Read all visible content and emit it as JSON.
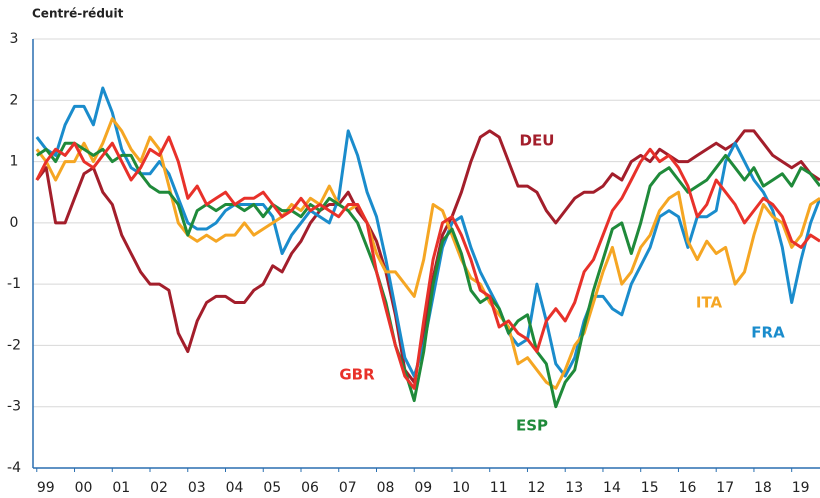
{
  "chart_data": {
    "type": "line",
    "title": "Centré-réduit",
    "x": [
      1999,
      1999.25,
      1999.5,
      1999.75,
      2000,
      2000.25,
      2000.5,
      2000.75,
      2001,
      2001.25,
      2001.5,
      2001.75,
      2002,
      2002.25,
      2002.5,
      2002.75,
      2003,
      2003.25,
      2003.5,
      2003.75,
      2004,
      2004.25,
      2004.5,
      2004.75,
      2005,
      2005.25,
      2005.5,
      2005.75,
      2006,
      2006.25,
      2006.5,
      2006.75,
      2007,
      2007.25,
      2007.5,
      2007.75,
      2008,
      2008.25,
      2008.5,
      2008.75,
      2009,
      2009.25,
      2009.5,
      2009.75,
      2010,
      2010.25,
      2010.5,
      2010.75,
      2011,
      2011.25,
      2011.5,
      2011.75,
      2012,
      2012.25,
      2012.5,
      2012.75,
      2013,
      2013.25,
      2013.5,
      2013.75,
      2014,
      2014.25,
      2014.5,
      2014.75,
      2015,
      2015.25,
      2015.5,
      2015.75,
      2016,
      2016.25,
      2016.5,
      2016.75,
      2017,
      2017.25,
      2017.5,
      2017.75,
      2018,
      2018.25,
      2018.5,
      2018.75,
      2019,
      2019.25,
      2019.5,
      2019.75
    ],
    "series": [
      {
        "name": "DEU",
        "color": "#a31e2b",
        "values": [
          0.7,
          0.9,
          0.0,
          0.0,
          0.4,
          0.8,
          0.9,
          0.5,
          0.3,
          -0.2,
          -0.5,
          -0.8,
          -1.0,
          -1.0,
          -1.1,
          -1.8,
          -2.1,
          -1.6,
          -1.3,
          -1.2,
          -1.2,
          -1.3,
          -1.3,
          -1.1,
          -1.0,
          -0.7,
          -0.8,
          -0.5,
          -0.3,
          0.0,
          0.2,
          0.3,
          0.3,
          0.5,
          0.2,
          0.0,
          -0.3,
          -0.8,
          -1.5,
          -2.4,
          -2.6,
          -1.8,
          -0.9,
          -0.2,
          0.1,
          0.5,
          1.0,
          1.4,
          1.5,
          1.4,
          1.0,
          0.6,
          0.6,
          0.5,
          0.2,
          0.0,
          0.2,
          0.4,
          0.5,
          0.5,
          0.6,
          0.8,
          0.7,
          1.0,
          1.1,
          1.0,
          1.2,
          1.1,
          1.0,
          1.0,
          1.1,
          1.2,
          1.3,
          1.2,
          1.3,
          1.5,
          1.5,
          1.3,
          1.1,
          1.0,
          0.9,
          1.0,
          0.8,
          0.7
        ]
      },
      {
        "name": "FRA",
        "color": "#1a8ccc",
        "values": [
          1.4,
          1.2,
          1.1,
          1.6,
          1.9,
          1.9,
          1.6,
          2.2,
          1.8,
          1.2,
          0.9,
          0.8,
          0.8,
          1.0,
          0.8,
          0.4,
          0.0,
          -0.1,
          -0.1,
          0.0,
          0.2,
          0.3,
          0.3,
          0.3,
          0.3,
          0.1,
          -0.5,
          -0.2,
          0.0,
          0.2,
          0.1,
          0.0,
          0.4,
          1.5,
          1.1,
          0.5,
          0.1,
          -0.6,
          -1.4,
          -2.2,
          -2.5,
          -2.0,
          -1.2,
          -0.4,
          0.0,
          0.1,
          -0.4,
          -0.8,
          -1.1,
          -1.4,
          -1.8,
          -2.0,
          -1.9,
          -1.0,
          -1.6,
          -2.3,
          -2.5,
          -2.2,
          -1.6,
          -1.2,
          -1.2,
          -1.4,
          -1.5,
          -1.0,
          -0.7,
          -0.4,
          0.1,
          0.2,
          0.1,
          -0.4,
          0.1,
          0.1,
          0.2,
          1.0,
          1.3,
          1.0,
          0.7,
          0.5,
          0.2,
          -0.4,
          -1.3,
          -0.6,
          0.0,
          0.4
        ]
      },
      {
        "name": "ITA",
        "color": "#f5a623",
        "values": [
          1.2,
          1.0,
          0.7,
          1.0,
          1.0,
          1.3,
          1.0,
          1.3,
          1.7,
          1.5,
          1.2,
          1.0,
          1.4,
          1.2,
          0.6,
          0.0,
          -0.2,
          -0.3,
          -0.2,
          -0.3,
          -0.2,
          -0.2,
          0.0,
          -0.2,
          -0.1,
          0.0,
          0.1,
          0.3,
          0.2,
          0.4,
          0.3,
          0.6,
          0.3,
          0.2,
          0.3,
          0.0,
          -0.5,
          -0.8,
          -0.8,
          -1.0,
          -1.2,
          -0.6,
          0.3,
          0.2,
          -0.2,
          -0.6,
          -0.9,
          -1.0,
          -1.3,
          -1.5,
          -1.7,
          -2.3,
          -2.2,
          -2.4,
          -2.6,
          -2.7,
          -2.4,
          -2.0,
          -1.8,
          -1.3,
          -0.8,
          -0.4,
          -1.0,
          -0.8,
          -0.4,
          -0.2,
          0.2,
          0.4,
          0.5,
          -0.3,
          -0.6,
          -0.3,
          -0.5,
          -0.4,
          -1.0,
          -0.8,
          -0.2,
          0.3,
          0.1,
          0.0,
          -0.4,
          -0.2,
          0.3,
          0.4
        ]
      },
      {
        "name": "ESP",
        "color": "#1f8a3a",
        "values": [
          1.1,
          1.2,
          1.0,
          1.3,
          1.3,
          1.2,
          1.1,
          1.2,
          1.0,
          1.1,
          1.1,
          0.8,
          0.6,
          0.5,
          0.5,
          0.3,
          -0.2,
          0.2,
          0.3,
          0.2,
          0.3,
          0.3,
          0.2,
          0.3,
          0.1,
          0.3,
          0.2,
          0.2,
          0.1,
          0.3,
          0.2,
          0.4,
          0.3,
          0.2,
          0.0,
          -0.4,
          -0.8,
          -1.3,
          -2.0,
          -2.4,
          -2.9,
          -2.1,
          -1.0,
          -0.3,
          -0.1,
          -0.5,
          -1.1,
          -1.3,
          -1.2,
          -1.4,
          -1.8,
          -1.6,
          -1.5,
          -2.1,
          -2.3,
          -3.0,
          -2.6,
          -2.4,
          -1.7,
          -1.1,
          -0.6,
          -0.1,
          0.0,
          -0.5,
          0.0,
          0.6,
          0.8,
          0.9,
          0.7,
          0.5,
          0.6,
          0.7,
          0.9,
          1.1,
          0.9,
          0.7,
          0.9,
          0.6,
          0.7,
          0.8,
          0.6,
          0.9,
          0.8,
          0.6
        ]
      },
      {
        "name": "GBR",
        "color": "#e8312a",
        "values": [
          0.7,
          1.0,
          1.2,
          1.1,
          1.3,
          1.0,
          0.9,
          1.1,
          1.3,
          1.0,
          0.7,
          0.9,
          1.2,
          1.1,
          1.4,
          1.0,
          0.4,
          0.6,
          0.3,
          0.4,
          0.5,
          0.3,
          0.4,
          0.4,
          0.5,
          0.3,
          0.1,
          0.2,
          0.4,
          0.2,
          0.3,
          0.2,
          0.1,
          0.3,
          0.3,
          0.0,
          -0.8,
          -1.4,
          -2.0,
          -2.5,
          -2.7,
          -1.6,
          -0.6,
          0.0,
          0.1,
          -0.2,
          -0.6,
          -1.1,
          -1.2,
          -1.7,
          -1.6,
          -1.8,
          -1.9,
          -2.1,
          -1.6,
          -1.4,
          -1.6,
          -1.3,
          -0.8,
          -0.6,
          -0.2,
          0.2,
          0.4,
          0.7,
          1.0,
          1.2,
          1.0,
          1.1,
          0.9,
          0.6,
          0.1,
          0.3,
          0.7,
          0.5,
          0.3,
          0.0,
          0.2,
          0.4,
          0.3,
          0.1,
          -0.3,
          -0.4,
          -0.2,
          -0.3
        ]
      }
    ],
    "xlim": [
      1998.9,
      2019.75
    ],
    "xticks": [
      {
        "value": 1999,
        "label": "99"
      },
      {
        "value": 2000,
        "label": "00"
      },
      {
        "value": 2001,
        "label": "01"
      },
      {
        "value": 2002,
        "label": "02"
      },
      {
        "value": 2003,
        "label": "03"
      },
      {
        "value": 2004,
        "label": "04"
      },
      {
        "value": 2005,
        "label": "05"
      },
      {
        "value": 2006,
        "label": "06"
      },
      {
        "value": 2007,
        "label": "07"
      },
      {
        "value": 2008,
        "label": "08"
      },
      {
        "value": 2009,
        "label": "09"
      },
      {
        "value": 2010,
        "label": "10"
      },
      {
        "value": 2011,
        "label": "11"
      },
      {
        "value": 2012,
        "label": "12"
      },
      {
        "value": 2013,
        "label": "13"
      },
      {
        "value": 2014,
        "label": "14"
      },
      {
        "value": 2015,
        "label": "15"
      },
      {
        "value": 2016,
        "label": "16"
      },
      {
        "value": 2017,
        "label": "17"
      },
      {
        "value": 2018,
        "label": "18"
      },
      {
        "value": 2019,
        "label": "19"
      }
    ],
    "ylim": [
      -4,
      3
    ],
    "yticks": [
      3,
      2,
      1,
      0,
      -1,
      -2,
      -3,
      -4
    ],
    "grid": true
  }
}
